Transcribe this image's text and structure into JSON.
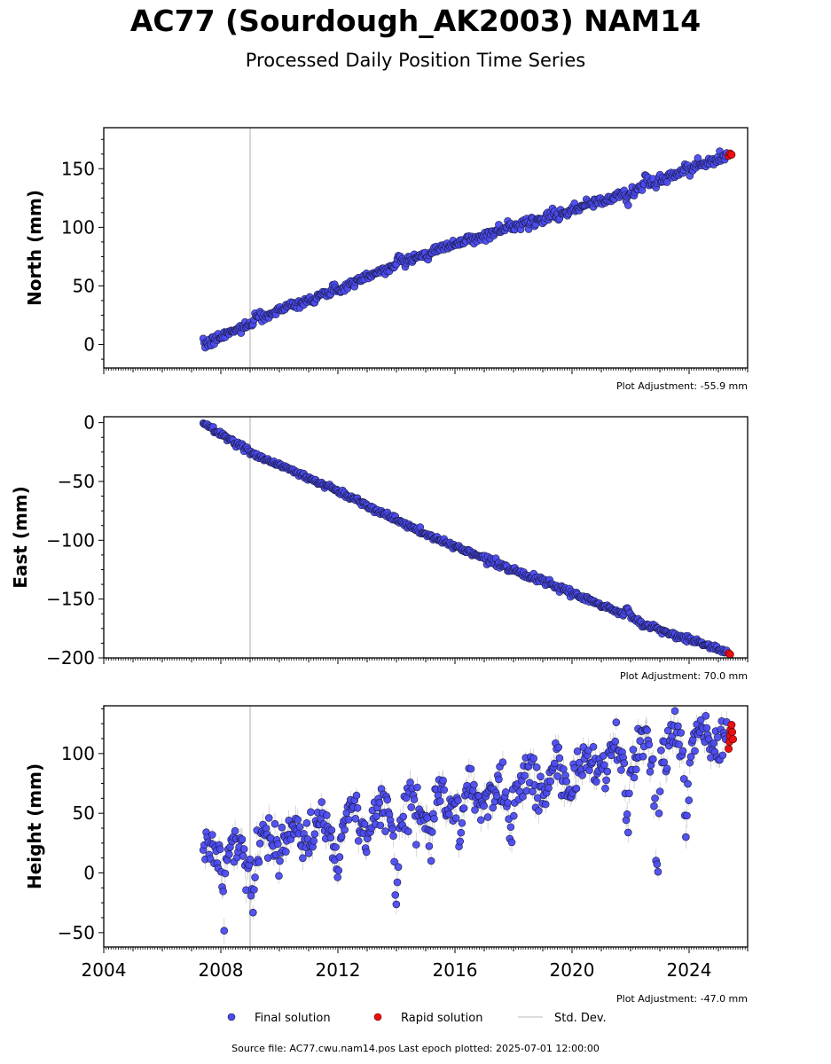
{
  "figure": {
    "title": "AC77 (Sourdough_AK2003) NAM14",
    "subtitle": "Processed Daily Position Time Series",
    "footer": "Source file: AC77.cwu.nam14.pos  Last epoch plotted: 2025-07-01 12:00:00"
  },
  "legend": {
    "final": "Final solution",
    "rapid": "Rapid solution",
    "std": "Std. Dev."
  },
  "colors": {
    "final": "#4b4bf0",
    "rapid": "#e81010",
    "edge": "#1a1a40",
    "std": "#b0b0b0",
    "vline": "#c8c8c8"
  },
  "chart_data": [
    {
      "type": "scatter",
      "ylabel": "North (mm)",
      "adjustment": "Plot Adjustment: -55.9 mm",
      "xlim": [
        "2004-01-01",
        "2026-01-01"
      ],
      "ylim": [
        -20,
        185
      ],
      "yticks": [
        "0",
        "50",
        "100",
        "150"
      ],
      "event_line": "2009-01-01",
      "trend": [
        [
          2007.4,
          -1
        ],
        [
          2010,
          30
        ],
        [
          2012,
          47
        ],
        [
          2015,
          78
        ],
        [
          2018,
          101
        ],
        [
          2020,
          115
        ],
        [
          2022.1,
          131
        ],
        [
          2024,
          150
        ],
        [
          2025.3,
          161
        ]
      ],
      "noise": 2.2,
      "excursions": [
        [
          2008.0,
          1.5
        ],
        [
          2009.3,
          4
        ],
        [
          2011.2,
          -4
        ],
        [
          2014.1,
          10
        ],
        [
          2015.1,
          -6
        ],
        [
          2017.9,
          3
        ],
        [
          2021.9,
          -10
        ],
        [
          2022.5,
          9
        ],
        [
          2023.9,
          3
        ],
        [
          2024.3,
          6
        ]
      ],
      "rapid": [
        [
          2025.35,
          161
        ],
        [
          2025.4,
          163
        ],
        [
          2025.45,
          162
        ]
      ]
    },
    {
      "type": "scatter",
      "ylabel": "East (mm)",
      "adjustment": "Plot Adjustment: 70.0 mm",
      "xlim": [
        "2004-01-01",
        "2026-01-01"
      ],
      "ylim": [
        -200,
        5
      ],
      "yticks": [
        "0",
        "−50",
        "−100",
        "−150",
        "−200"
      ],
      "event_line": "2009-01-01",
      "trend": [
        [
          2007.4,
          0
        ],
        [
          2009,
          -25
        ],
        [
          2012,
          -58
        ],
        [
          2015,
          -95
        ],
        [
          2018,
          -125
        ],
        [
          2021,
          -155
        ],
        [
          2023,
          -176
        ],
        [
          2025.4,
          -196
        ]
      ],
      "noise": 1.2,
      "excursions": [
        [
          2021.9,
          12
        ],
        [
          2022.5,
          -4
        ]
      ],
      "rapid": [
        [
          2025.35,
          -196
        ],
        [
          2025.4,
          -197
        ]
      ]
    },
    {
      "type": "scatter",
      "ylabel": "Height (mm)",
      "adjustment": "Plot Adjustment: -47.0 mm",
      "xlim": [
        "2004-01-01",
        "2026-01-01"
      ],
      "ylim": [
        -62,
        140
      ],
      "yticks": [
        "−50",
        "0",
        "50",
        "100"
      ],
      "xticks": [
        "2004",
        "2008",
        "2012",
        "2016",
        "2020",
        "2024"
      ],
      "event_line": "2009-01-01",
      "trend": [
        [
          2007.4,
          15
        ],
        [
          2009,
          20
        ],
        [
          2012,
          42
        ],
        [
          2015,
          55
        ],
        [
          2018,
          72
        ],
        [
          2020,
          85
        ],
        [
          2022,
          100
        ],
        [
          2024,
          110
        ],
        [
          2025.4,
          118
        ]
      ],
      "noise": 10,
      "excursions": [
        [
          2008.1,
          -50
        ],
        [
          2009.1,
          -42
        ],
        [
          2012.0,
          -55
        ],
        [
          2014.0,
          -120
        ],
        [
          2015.2,
          -40
        ],
        [
          2016.2,
          -30
        ],
        [
          2017.9,
          -40
        ],
        [
          2019.9,
          -35
        ],
        [
          2021.9,
          -65
        ],
        [
          2022.9,
          -110
        ],
        [
          2023.9,
          -85
        ]
      ],
      "rapid": [
        [
          2025.35,
          104
        ],
        [
          2025.38,
          110
        ],
        [
          2025.4,
          115
        ],
        [
          2025.42,
          120
        ],
        [
          2025.45,
          124
        ],
        [
          2025.47,
          118
        ],
        [
          2025.5,
          112
        ]
      ]
    }
  ]
}
